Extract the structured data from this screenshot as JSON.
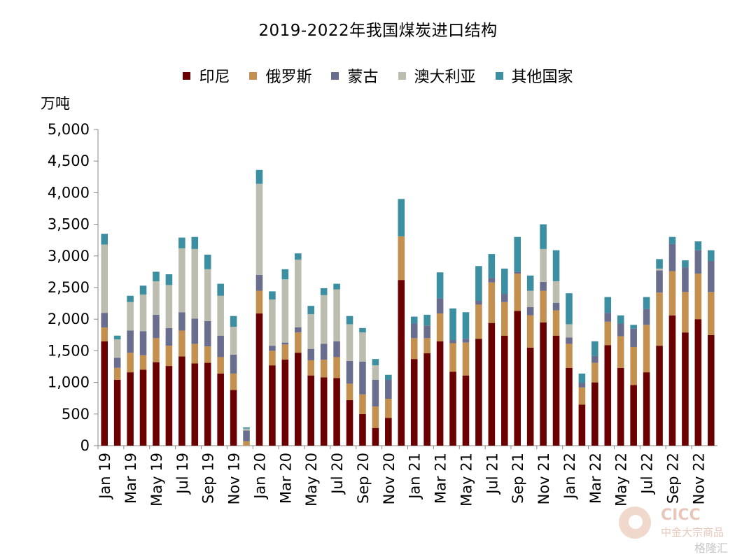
{
  "title": "2019-2022年我国煤炭进口结构",
  "unit_label": "万吨",
  "watermark": {
    "brand_en": "CICC",
    "brand_cn": "中金大宗商品",
    "source": "格隆汇"
  },
  "chart_data": {
    "type": "bar",
    "stacked": true,
    "ylim": [
      0,
      5000
    ],
    "yticks": [
      "0",
      "500",
      "1,000",
      "1,500",
      "2,000",
      "2,500",
      "3,000",
      "3,500",
      "4,000",
      "4,500",
      "5,000"
    ],
    "legend_position": "top-center",
    "categories": [
      "Jan 19",
      "Feb 19",
      "Mar 19",
      "Apr 19",
      "May 19",
      "Jun 19",
      "Jul 19",
      "Aug 19",
      "Sep 19",
      "Oct 19",
      "Nov 19",
      "Dec 19",
      "Jan 20",
      "Feb 20",
      "Mar 20",
      "Apr 20",
      "May 20",
      "Jun 20",
      "Jul 20",
      "Aug 20",
      "Sep 20",
      "Oct 20",
      "Nov 20",
      "Dec 20",
      "Jan 21",
      "Feb 21",
      "Mar 21",
      "Apr 21",
      "May 21",
      "Jun 21",
      "Jul 21",
      "Aug 21",
      "Sep 21",
      "Oct 21",
      "Nov 21",
      "Dec 21",
      "Jan 22",
      "Feb 22",
      "Mar 22",
      "Apr 22",
      "May 22",
      "Jun 22",
      "Jul 22",
      "Aug 22",
      "Sep 22",
      "Oct 22",
      "Nov 22",
      "Dec 22"
    ],
    "tick_labels": [
      "Jan 19",
      "Mar 19",
      "May 19",
      "Jul 19",
      "Sep 19",
      "Nov 19",
      "Jan 20",
      "Mar 20",
      "May 20",
      "Jul 20",
      "Sep 20",
      "Nov 20",
      "Jan 21",
      "Mar 21",
      "May 21",
      "Jul 21",
      "Sep 21",
      "Nov 21",
      "Jan 22",
      "Mar 22",
      "May 22",
      "Jul 22",
      "Sep 22",
      "Nov 22"
    ],
    "series": [
      {
        "name": "印尼",
        "color": "#6b0000",
        "values": [
          1650,
          1040,
          1160,
          1200,
          1320,
          1260,
          1410,
          1300,
          1310,
          1140,
          880,
          0,
          2090,
          1270,
          1360,
          1470,
          1110,
          1080,
          1070,
          720,
          500,
          280,
          440,
          2620,
          1370,
          1460,
          1650,
          1170,
          1110,
          1690,
          1940,
          1740,
          2130,
          1550,
          1950,
          1740,
          1230,
          650,
          1000,
          1590,
          1230,
          960,
          1160,
          1580,
          2060,
          1790,
          2000,
          1750
        ]
      },
      {
        "name": "俄罗斯",
        "color": "#c49050",
        "values": [
          220,
          190,
          310,
          230,
          380,
          320,
          410,
          310,
          260,
          260,
          260,
          70,
          360,
          230,
          240,
          320,
          240,
          280,
          330,
          260,
          310,
          340,
          300,
          690,
          330,
          240,
          440,
          450,
          520,
          540,
          640,
          530,
          590,
          510,
          500,
          400,
          380,
          270,
          310,
          370,
          500,
          600,
          750,
          840,
          700,
          640,
          720,
          680
        ]
      },
      {
        "name": "蒙古",
        "color": "#6a6e8e",
        "values": [
          230,
          160,
          350,
          380,
          370,
          280,
          290,
          400,
          400,
          340,
          300,
          170,
          250,
          80,
          30,
          80,
          180,
          250,
          250,
          360,
          520,
          420,
          300,
          0,
          230,
          200,
          240,
          50,
          60,
          60,
          70,
          130,
          30,
          130,
          140,
          120,
          100,
          70,
          110,
          140,
          200,
          290,
          250,
          350,
          430,
          390,
          370,
          490
        ]
      },
      {
        "name": "澳大利亚",
        "color": "#bdbdaf",
        "values": [
          1080,
          290,
          450,
          580,
          530,
          680,
          1010,
          1100,
          820,
          630,
          440,
          30,
          1440,
          730,
          1000,
          1070,
          550,
          770,
          820,
          580,
          460,
          230,
          0,
          0,
          0,
          0,
          0,
          0,
          0,
          0,
          0,
          0,
          0,
          260,
          520,
          340,
          210,
          0,
          0,
          0,
          0,
          0,
          0,
          30,
          0,
          0,
          0,
          0
        ]
      },
      {
        "name": "其他国家",
        "color": "#3b8fa0",
        "values": [
          170,
          60,
          100,
          140,
          150,
          170,
          170,
          190,
          230,
          190,
          170,
          20,
          220,
          130,
          160,
          100,
          130,
          110,
          90,
          130,
          70,
          100,
          80,
          590,
          110,
          170,
          410,
          500,
          420,
          550,
          380,
          400,
          550,
          240,
          390,
          490,
          490,
          150,
          230,
          250,
          130,
          60,
          190,
          150,
          110,
          110,
          140,
          170
        ]
      }
    ]
  }
}
